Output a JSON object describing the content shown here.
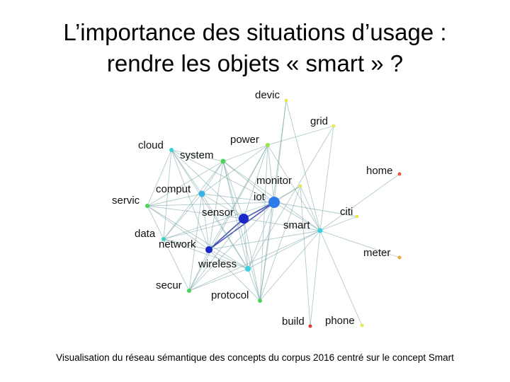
{
  "title": {
    "line1": "L’importance des situations d’usage :",
    "line2": "rendre les objets « smart » ?"
  },
  "caption": "Visualisation du réseau sémantique des concepts du corpus 2016 centré sur le concept Smart",
  "network": {
    "nodes": [
      {
        "id": "devic",
        "label": "devic",
        "color": "#e6e85a"
      },
      {
        "id": "grid",
        "label": "grid",
        "color": "#e6e85a"
      },
      {
        "id": "power",
        "label": "power",
        "color": "#9be24a"
      },
      {
        "id": "cloud",
        "label": "cloud",
        "color": "#3ad0e0"
      },
      {
        "id": "system",
        "label": "system",
        "color": "#4cd35a"
      },
      {
        "id": "home",
        "label": "home",
        "color": "#e05a3a"
      },
      {
        "id": "monitor",
        "label": "monitor",
        "color": "#e6e85a"
      },
      {
        "id": "comput",
        "label": "comput",
        "color": "#3ab0e8"
      },
      {
        "id": "iot",
        "label": "iot",
        "color": "#2d7be8"
      },
      {
        "id": "servic",
        "label": "servic",
        "color": "#4cd35a"
      },
      {
        "id": "sensor",
        "label": "sensor",
        "color": "#1a28c8"
      },
      {
        "id": "citi",
        "label": "citi",
        "color": "#e6e85a"
      },
      {
        "id": "smart",
        "label": "smart",
        "color": "#3ad0e0"
      },
      {
        "id": "data",
        "label": "data",
        "color": "#3ad0c0"
      },
      {
        "id": "network",
        "label": "network",
        "color": "#1a28c8"
      },
      {
        "id": "meter",
        "label": "meter",
        "color": "#e6a83a"
      },
      {
        "id": "wireless",
        "label": "wireless",
        "color": "#3ad0e0"
      },
      {
        "id": "secur",
        "label": "secur",
        "color": "#4cd35a"
      },
      {
        "id": "protocol",
        "label": "protocol",
        "color": "#4cd35a"
      },
      {
        "id": "build",
        "label": "build",
        "color": "#e03a3a"
      },
      {
        "id": "phone",
        "label": "phone",
        "color": "#e6e85a"
      }
    ],
    "edges": [
      [
        "iot",
        "sensor"
      ],
      [
        "iot",
        "network"
      ],
      [
        "iot",
        "smart"
      ],
      [
        "iot",
        "comput"
      ],
      [
        "iot",
        "system"
      ],
      [
        "iot",
        "power"
      ],
      [
        "iot",
        "monitor"
      ],
      [
        "iot",
        "devic"
      ],
      [
        "iot",
        "cloud"
      ],
      [
        "iot",
        "servic"
      ],
      [
        "iot",
        "data"
      ],
      [
        "iot",
        "wireless"
      ],
      [
        "iot",
        "protocol"
      ],
      [
        "iot",
        "secur"
      ],
      [
        "iot",
        "citi"
      ],
      [
        "sensor",
        "network"
      ],
      [
        "sensor",
        "wireless"
      ],
      [
        "sensor",
        "smart"
      ],
      [
        "sensor",
        "comput"
      ],
      [
        "sensor",
        "system"
      ],
      [
        "sensor",
        "data"
      ],
      [
        "sensor",
        "servic"
      ],
      [
        "sensor",
        "power"
      ],
      [
        "sensor",
        "protocol"
      ],
      [
        "sensor",
        "secur"
      ],
      [
        "sensor",
        "monitor"
      ],
      [
        "sensor",
        "cloud"
      ],
      [
        "network",
        "wireless"
      ],
      [
        "network",
        "comput"
      ],
      [
        "network",
        "system"
      ],
      [
        "network",
        "data"
      ],
      [
        "network",
        "servic"
      ],
      [
        "network",
        "cloud"
      ],
      [
        "network",
        "secur"
      ],
      [
        "network",
        "protocol"
      ],
      [
        "network",
        "smart"
      ],
      [
        "network",
        "power"
      ],
      [
        "comput",
        "cloud"
      ],
      [
        "comput",
        "system"
      ],
      [
        "comput",
        "servic"
      ],
      [
        "comput",
        "data"
      ],
      [
        "comput",
        "wireless"
      ],
      [
        "comput",
        "power"
      ],
      [
        "comput",
        "secur"
      ],
      [
        "cloud",
        "system"
      ],
      [
        "cloud",
        "servic"
      ],
      [
        "cloud",
        "data"
      ],
      [
        "cloud",
        "wireless"
      ],
      [
        "system",
        "power"
      ],
      [
        "system",
        "servic"
      ],
      [
        "system",
        "data"
      ],
      [
        "system",
        "wireless"
      ],
      [
        "system",
        "protocol"
      ],
      [
        "servic",
        "data"
      ],
      [
        "servic",
        "wireless"
      ],
      [
        "data",
        "wireless"
      ],
      [
        "data",
        "secur"
      ],
      [
        "wireless",
        "protocol"
      ],
      [
        "wireless",
        "secur"
      ],
      [
        "wireless",
        "smart"
      ],
      [
        "smart",
        "home"
      ],
      [
        "smart",
        "grid"
      ],
      [
        "smart",
        "devic"
      ],
      [
        "smart",
        "citi"
      ],
      [
        "smart",
        "meter"
      ],
      [
        "smart",
        "phone"
      ],
      [
        "smart",
        "power"
      ],
      [
        "smart",
        "monitor"
      ],
      [
        "smart",
        "build"
      ],
      [
        "smart",
        "protocol"
      ],
      [
        "smart",
        "secur"
      ],
      [
        "smart",
        "system"
      ],
      [
        "power",
        "grid"
      ],
      [
        "power",
        "protocol"
      ],
      [
        "power",
        "secur"
      ],
      [
        "monitor",
        "build"
      ],
      [
        "monitor",
        "protocol"
      ],
      [
        "devic",
        "protocol"
      ],
      [
        "grid",
        "wireless"
      ]
    ]
  }
}
